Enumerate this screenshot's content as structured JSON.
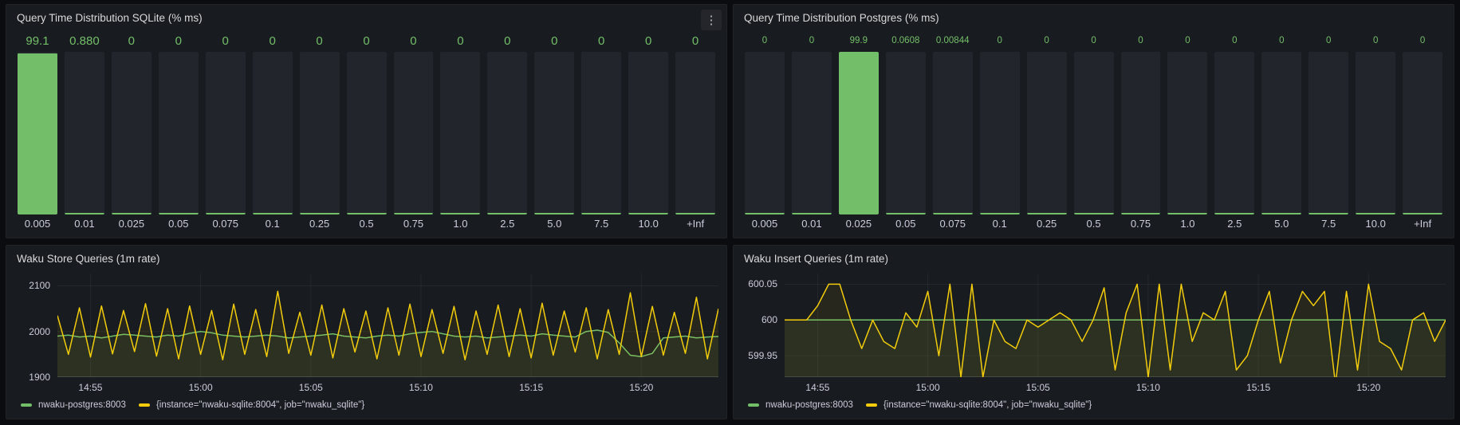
{
  "icons": {
    "panel_menu": "⋮"
  },
  "colors": {
    "green": "#73bf69",
    "yellow": "#f2cc0c",
    "panel_bg": "#181b1f",
    "page_bg": "#0b0c0f",
    "bar_track": "#22252b",
    "text": "#ccccdc",
    "title": "#d8d9da"
  },
  "chart_data": [
    {
      "id": "sqlite",
      "type": "bar",
      "title": "Query Time Distribution SQLite (% ms)",
      "unit": "%",
      "ylim": [
        0,
        100
      ],
      "bar_color": "#73bf69",
      "categories": [
        "0.005",
        "0.01",
        "0.025",
        "0.05",
        "0.075",
        "0.1",
        "0.25",
        "0.5",
        "0.75",
        "1.0",
        "2.5",
        "5.0",
        "7.5",
        "10.0",
        "+Inf"
      ],
      "values": [
        99.1,
        0.88,
        0,
        0,
        0,
        0,
        0,
        0,
        0,
        0,
        0,
        0,
        0,
        0,
        0
      ],
      "value_labels": [
        "99.1",
        "0.880",
        "0",
        "0",
        "0",
        "0",
        "0",
        "0",
        "0",
        "0",
        "0",
        "0",
        "0",
        "0",
        "0"
      ]
    },
    {
      "id": "postgres",
      "type": "bar",
      "title": "Query Time Distribution Postgres (% ms)",
      "unit": "%",
      "ylim": [
        0,
        100
      ],
      "bar_color": "#73bf69",
      "categories": [
        "0.005",
        "0.01",
        "0.025",
        "0.05",
        "0.075",
        "0.1",
        "0.25",
        "0.5",
        "0.75",
        "1.0",
        "2.5",
        "5.0",
        "7.5",
        "10.0",
        "+Inf"
      ],
      "values": [
        0,
        0,
        99.9,
        0.0608,
        0.00844,
        0,
        0,
        0,
        0,
        0,
        0,
        0,
        0,
        0,
        0
      ],
      "value_labels": [
        "0",
        "0",
        "99.9",
        "0.0608",
        "0.00844",
        "0",
        "0",
        "0",
        "0",
        "0",
        "0",
        "0",
        "0",
        "0",
        "0"
      ]
    },
    {
      "id": "store",
      "type": "line",
      "title": "Waku Store Queries (1m rate)",
      "grid": true,
      "legend_position": "bottom",
      "x_start": "14:53:30",
      "x_end": "15:23:30",
      "x_step_seconds": 30,
      "x_ticks": [
        "14:55",
        "15:00",
        "15:05",
        "15:10",
        "15:15",
        "15:20"
      ],
      "ylim": [
        1900,
        2127
      ],
      "y_ticks": [
        {
          "value": 2100,
          "label": "2100"
        },
        {
          "value": 2000,
          "label": "2000"
        },
        {
          "value": 1900,
          "label": "1900"
        }
      ],
      "series": [
        {
          "name": "nwaku-postgres:8003",
          "color": "#73bf69",
          "width": 1.5,
          "fill_opacity": 0.07,
          "values": [
            1990,
            1992,
            1988,
            1990,
            1986,
            1990,
            1994,
            1992,
            1990,
            1988,
            1992,
            1990,
            1996,
            2000,
            1997,
            1992,
            1990,
            1988,
            1990,
            1992,
            1990,
            1986,
            1988,
            1990,
            1992,
            1995,
            1990,
            1988,
            1986,
            1990,
            1992,
            1990,
            1995,
            1998,
            2000,
            1995,
            1990,
            1988,
            1990,
            1986,
            1988,
            1990,
            1992,
            1990,
            1995,
            1992,
            1990,
            1988,
            2000,
            2003,
            1998,
            1975,
            1948,
            1945,
            1952,
            1986,
            1988,
            1990,
            1986,
            1988,
            1989
          ]
        },
        {
          "name": "{instance=\"nwaku-sqlite:8004\", job=\"nwaku_sqlite\"}",
          "color": "#f2cc0c",
          "width": 1.5,
          "fill_opacity": 0.07,
          "values": [
            2035,
            1950,
            2052,
            1944,
            2056,
            1951,
            2046,
            1956,
            2061,
            1946,
            2050,
            1940,
            2056,
            1950,
            2046,
            1938,
            2060,
            1950,
            2048,
            1945,
            2088,
            1952,
            2042,
            1948,
            2058,
            1942,
            2050,
            1955,
            2045,
            1940,
            2052,
            1948,
            2060,
            1945,
            2048,
            1952,
            2055,
            1938,
            2045,
            1950,
            2058,
            1945,
            2050,
            1942,
            2062,
            1948,
            2045,
            1955,
            2052,
            1940,
            2048,
            1950,
            2085,
            1945,
            2055,
            1948,
            2042,
            1952,
            2075,
            1940,
            2050
          ]
        }
      ]
    },
    {
      "id": "insert",
      "type": "line",
      "title": "Waku Insert Queries (1m rate)",
      "grid": true,
      "legend_position": "bottom",
      "x_start": "14:53:30",
      "x_end": "15:23:30",
      "x_step_seconds": 30,
      "x_ticks": [
        "14:55",
        "15:00",
        "15:05",
        "15:10",
        "15:15",
        "15:20"
      ],
      "ylim": [
        599.92,
        600.065
      ],
      "y_ticks": [
        {
          "value": 600.05,
          "label": "600.05"
        },
        {
          "value": 600,
          "label": "600"
        },
        {
          "value": 599.95,
          "label": "599.95"
        }
      ],
      "series": [
        {
          "name": "nwaku-postgres:8003",
          "color": "#73bf69",
          "width": 1.5,
          "fill_opacity": 0.07,
          "values": 600
        },
        {
          "name": "{instance=\"nwaku-sqlite:8004\", job=\"nwaku_sqlite\"}",
          "color": "#f2cc0c",
          "width": 1.5,
          "fill_opacity": 0.07,
          "values": [
            600,
            600,
            600,
            600.02,
            600.05,
            600.05,
            600,
            599.96,
            600,
            599.97,
            599.96,
            600.01,
            599.99,
            600.04,
            599.95,
            600.05,
            599.92,
            600.05,
            599.92,
            600,
            599.97,
            599.96,
            600,
            599.99,
            600,
            600.01,
            600,
            599.97,
            600,
            600.045,
            599.93,
            600.01,
            600.05,
            599.92,
            600.05,
            599.93,
            600.05,
            599.97,
            600.01,
            600,
            600.04,
            599.93,
            599.95,
            600,
            600.04,
            599.94,
            600,
            600.04,
            600.02,
            600.04,
            599.91,
            600.04,
            599.93,
            600.05,
            599.97,
            599.96,
            599.93,
            600,
            600.01,
            599.97,
            600
          ]
        }
      ]
    }
  ]
}
